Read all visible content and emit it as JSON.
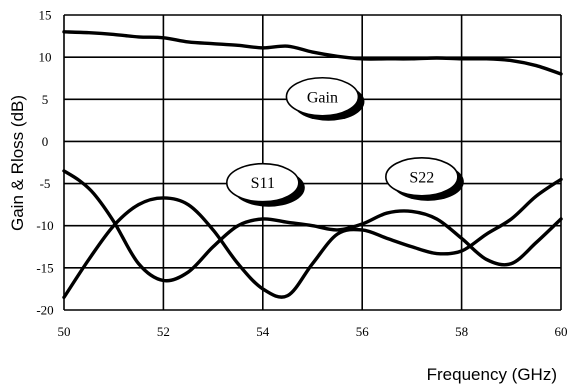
{
  "chart_data": {
    "type": "line",
    "xlabel": "Frequency (GHz)",
    "ylabel": "Gain & Rloss (dB)",
    "xlim": [
      50,
      60
    ],
    "ylim": [
      -20,
      15
    ],
    "x_ticks": [
      50,
      52,
      54,
      56,
      58,
      60
    ],
    "y_ticks": [
      -20,
      -15,
      -10,
      -5,
      0,
      5,
      10,
      15
    ],
    "grid": true,
    "legend": "none",
    "series": [
      {
        "name": "Gain",
        "x": [
          50,
          50.5,
          51,
          51.5,
          52,
          52.5,
          53,
          53.5,
          54,
          54.5,
          55,
          55.5,
          56,
          56.5,
          57,
          57.5,
          58,
          58.5,
          59,
          59.5,
          60
        ],
        "y": [
          13,
          12.9,
          12.7,
          12.4,
          12.3,
          11.8,
          11.6,
          11.4,
          11.1,
          11.3,
          10.6,
          10.1,
          9.8,
          9.8,
          9.8,
          9.9,
          9.8,
          9.8,
          9.6,
          9.0,
          8.0
        ]
      },
      {
        "name": "S11",
        "x": [
          50,
          50.3,
          50.6,
          51,
          51.5,
          52,
          52.5,
          53,
          53.5,
          54,
          54.5,
          55,
          55.5,
          56,
          56.5,
          57,
          57.5,
          58,
          58.5,
          59,
          59.5,
          60
        ],
        "y": [
          -3.5,
          -4.6,
          -6.2,
          -9.5,
          -14.5,
          -16.5,
          -15.5,
          -12.5,
          -10,
          -9.2,
          -9.6,
          -10,
          -10.5,
          -9.8,
          -8.5,
          -8.3,
          -9.2,
          -11.5,
          -14,
          -14.5,
          -12,
          -9.2
        ]
      },
      {
        "name": "S22",
        "x": [
          50,
          50.5,
          51,
          51.5,
          52,
          52.5,
          53,
          53.5,
          54,
          54.5,
          55,
          55.5,
          56,
          56.5,
          57,
          57.5,
          58,
          58.5,
          59,
          59.5,
          60
        ],
        "y": [
          -18.5,
          -14,
          -10,
          -7.5,
          -6.7,
          -7.5,
          -10.5,
          -14.5,
          -17.5,
          -18.3,
          -14.5,
          -11,
          -10.5,
          -11.5,
          -12.5,
          -13.3,
          -13,
          -11,
          -9.2,
          -6.5,
          -4.5
        ]
      }
    ],
    "annotations": [
      {
        "text": "Gain",
        "series": "Gain",
        "x": 55.2,
        "y": 5.3
      },
      {
        "text": "S11",
        "series": "S11",
        "x": 54.0,
        "y": -4.9
      },
      {
        "text": "S22",
        "series": "S22",
        "x": 57.2,
        "y": -4.2
      }
    ]
  },
  "colors": {
    "line": "#000000",
    "grid": "#000000",
    "background": "#ffffff",
    "callout_fill": "#ffffff",
    "callout_shadow": "#000000"
  }
}
